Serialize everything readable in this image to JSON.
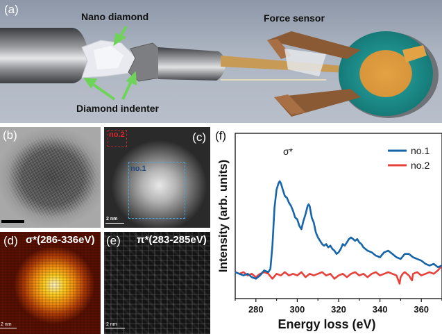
{
  "figure": {
    "panel_a": {
      "label": "(a)",
      "annotations": {
        "nano_diamond": "Nano diamond",
        "diamond_indenter": "Diamond indenter",
        "force_sensor": "Force sensor"
      }
    },
    "panel_b": {
      "label": "(b)"
    },
    "panel_c": {
      "label": "(c)",
      "box1": "no.1",
      "box2": "no.2",
      "scalebar": "2 nm"
    },
    "panel_d": {
      "label": "(d)",
      "title": "σ*(286-336eV)",
      "scalebar": "2 nm"
    },
    "panel_e": {
      "label": "(e)",
      "title": "π*(283-285eV)",
      "scalebar": "2 nm"
    },
    "panel_f": {
      "label": "(f)",
      "peak_annotation": "σ*"
    },
    "colors": {
      "no1": "#1565a8",
      "no2": "#e8403a",
      "arrow_green": "#6fd35a",
      "background_a": "#aab2c0"
    }
  },
  "chart_data": {
    "type": "line",
    "title": "",
    "xlabel": "Energy loss (eV)",
    "ylabel": "Intensity (arb. units)",
    "xlim": [
      270,
      370
    ],
    "ylim": [
      0,
      1
    ],
    "xticks": [
      280,
      300,
      320,
      340,
      360
    ],
    "yticks": [],
    "grid": false,
    "legend_position": "upper right",
    "annotations": [
      {
        "text": "σ*",
        "x": 292,
        "y": 0.96
      }
    ],
    "series": [
      {
        "name": "no.1",
        "color": "#1565a8",
        "x": [
          270,
          272,
          274,
          276,
          278,
          280,
          282,
          284,
          286,
          287,
          288,
          289,
          290,
          291,
          291.5,
          292,
          293,
          294,
          295,
          296,
          297,
          298,
          299,
          300,
          301,
          302,
          303,
          304,
          305,
          305.5,
          306,
          307,
          308,
          309,
          310,
          311,
          312,
          313,
          314,
          315,
          316,
          317,
          318,
          319,
          320,
          321,
          322,
          323,
          324,
          325,
          326,
          327,
          328,
          329,
          330,
          331,
          332,
          334,
          336,
          338,
          340,
          342,
          344,
          346,
          348,
          350,
          352,
          354,
          356,
          358,
          360,
          362,
          364,
          366,
          368,
          370
        ],
        "y": [
          0.16,
          0.15,
          0.14,
          0.15,
          0.13,
          0.12,
          0.14,
          0.17,
          0.16,
          0.18,
          0.32,
          0.55,
          0.66,
          0.7,
          0.71,
          0.7,
          0.66,
          0.62,
          0.61,
          0.58,
          0.56,
          0.53,
          0.49,
          0.48,
          0.44,
          0.42,
          0.47,
          0.51,
          0.56,
          0.57,
          0.56,
          0.49,
          0.46,
          0.4,
          0.37,
          0.35,
          0.33,
          0.32,
          0.33,
          0.31,
          0.32,
          0.3,
          0.29,
          0.27,
          0.28,
          0.3,
          0.33,
          0.32,
          0.34,
          0.36,
          0.37,
          0.36,
          0.35,
          0.36,
          0.34,
          0.33,
          0.31,
          0.29,
          0.28,
          0.26,
          0.25,
          0.28,
          0.29,
          0.27,
          0.25,
          0.24,
          0.27,
          0.27,
          0.25,
          0.24,
          0.23,
          0.21,
          0.2,
          0.21,
          0.19,
          0.2
        ]
      },
      {
        "name": "no.2",
        "color": "#e8403a",
        "x": [
          270,
          272,
          274,
          276,
          278,
          280,
          282,
          284,
          286,
          288,
          290,
          292,
          294,
          296,
          298,
          300,
          302,
          304,
          306,
          308,
          310,
          312,
          314,
          316,
          318,
          320,
          322,
          324,
          326,
          328,
          330,
          332,
          334,
          336,
          338,
          340,
          342,
          344,
          346,
          348,
          349.5,
          350,
          351,
          352,
          354,
          355.5,
          356,
          358,
          360,
          362,
          364,
          366,
          368,
          370
        ],
        "y": [
          0.16,
          0.15,
          0.16,
          0.14,
          0.15,
          0.13,
          0.15,
          0.16,
          0.15,
          0.12,
          0.15,
          0.14,
          0.16,
          0.14,
          0.15,
          0.14,
          0.16,
          0.13,
          0.15,
          0.14,
          0.15,
          0.16,
          0.14,
          0.15,
          0.12,
          0.14,
          0.15,
          0.13,
          0.15,
          0.16,
          0.14,
          0.15,
          0.13,
          0.15,
          0.16,
          0.14,
          0.15,
          0.16,
          0.15,
          0.14,
          0.09,
          0.13,
          0.15,
          0.16,
          0.14,
          0.11,
          0.15,
          0.16,
          0.14,
          0.15,
          0.16,
          0.15,
          0.17,
          0.2
        ]
      }
    ]
  }
}
